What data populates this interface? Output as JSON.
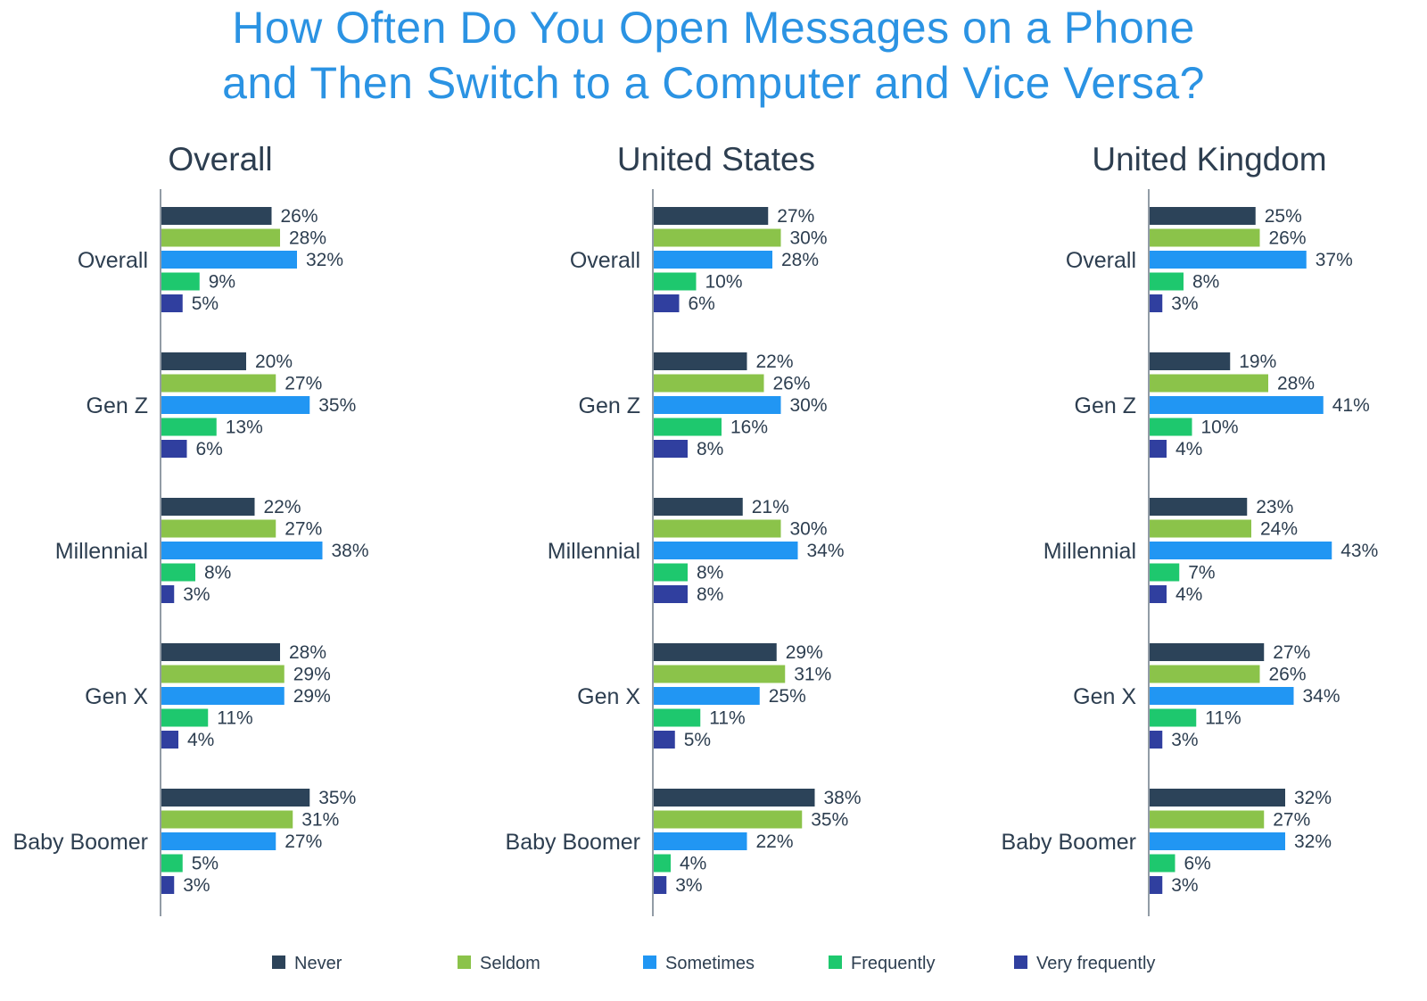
{
  "chart_data": {
    "type": "bar",
    "orientation": "horizontal",
    "title": [
      "How Often Do You Open Messages on a Phone",
      "and Then Switch to a Computer and Vice Versa?"
    ],
    "value_suffix": "%",
    "categories": [
      "Overall",
      "Gen Z",
      "Millennial",
      "Gen X",
      "Baby Boomer"
    ],
    "legend": {
      "placement": "bottom",
      "items": [
        {
          "name": "Never",
          "color": "#2c4359"
        },
        {
          "name": "Seldom",
          "color": "#8bc34a"
        },
        {
          "name": "Sometimes",
          "color": "#2196f3"
        },
        {
          "name": "Frequently",
          "color": "#1ec86e"
        },
        {
          "name": "Very frequently",
          "color": "#303f9f"
        }
      ]
    },
    "grid": false,
    "panels": [
      {
        "title": "Overall",
        "series": [
          {
            "name": "Never",
            "values": [
              26,
              20,
              22,
              28,
              35
            ]
          },
          {
            "name": "Seldom",
            "values": [
              28,
              27,
              27,
              29,
              31
            ]
          },
          {
            "name": "Sometimes",
            "values": [
              32,
              35,
              38,
              29,
              27
            ]
          },
          {
            "name": "Frequently",
            "values": [
              9,
              13,
              8,
              11,
              5
            ]
          },
          {
            "name": "Very frequently",
            "values": [
              5,
              6,
              3,
              4,
              3
            ]
          }
        ]
      },
      {
        "title": "United States",
        "series": [
          {
            "name": "Never",
            "values": [
              27,
              22,
              21,
              29,
              38
            ]
          },
          {
            "name": "Seldom",
            "values": [
              30,
              26,
              30,
              31,
              35
            ]
          },
          {
            "name": "Sometimes",
            "values": [
              28,
              30,
              34,
              25,
              22
            ]
          },
          {
            "name": "Frequently",
            "values": [
              10,
              16,
              8,
              11,
              4
            ]
          },
          {
            "name": "Very frequently",
            "values": [
              6,
              8,
              8,
              5,
              3
            ]
          }
        ]
      },
      {
        "title": "United Kingdom",
        "series": [
          {
            "name": "Never",
            "values": [
              25,
              19,
              23,
              27,
              32
            ]
          },
          {
            "name": "Seldom",
            "values": [
              26,
              28,
              24,
              26,
              27
            ]
          },
          {
            "name": "Sometimes",
            "values": [
              37,
              41,
              43,
              34,
              32
            ]
          },
          {
            "name": "Frequently",
            "values": [
              8,
              10,
              7,
              11,
              6
            ]
          },
          {
            "name": "Very frequently",
            "values": [
              3,
              4,
              4,
              3,
              3
            ]
          }
        ]
      }
    ]
  }
}
